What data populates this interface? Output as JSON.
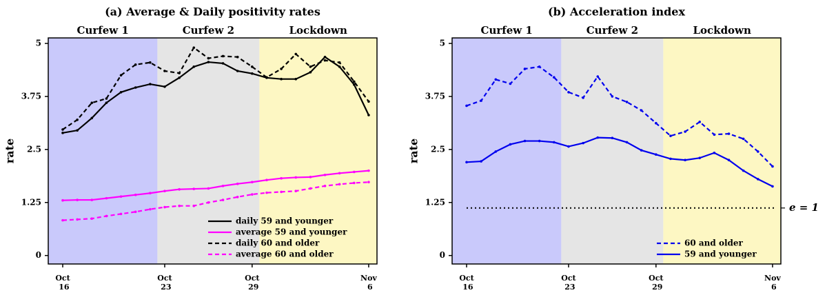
{
  "chart_data": [
    {
      "type": "line",
      "title": "(a) Average & Daily positivity rates",
      "y_label": "rate",
      "categories": [
        "Oct 16",
        null,
        null,
        null,
        null,
        null,
        null,
        "Oct 23",
        null,
        null,
        null,
        null,
        null,
        "Oct 29",
        null,
        null,
        null,
        null,
        null,
        null,
        null,
        "Nov 6"
      ],
      "ylim": [
        -0.2,
        5.13
      ],
      "yticks": [
        0,
        1.25,
        2.5,
        3.75,
        5
      ],
      "grid": false,
      "legend": "lower right",
      "regions": [
        {
          "label": "Curfew 1",
          "from": 0,
          "to": 6,
          "color": "#c9c9fb"
        },
        {
          "label": "Curfew 2",
          "from": 7,
          "to": 13,
          "color": "#e5e5e5"
        },
        {
          "label": "Lockdown",
          "from": 14,
          "to": 21,
          "color": "#fdf7c3"
        }
      ],
      "series": [
        {
          "name": "daily 59 and younger",
          "color": "#000000",
          "dash": false,
          "values": [
            2.89,
            2.95,
            3.24,
            3.6,
            3.85,
            3.96,
            4.04,
            3.98,
            4.19,
            4.45,
            4.56,
            4.53,
            4.35,
            4.29,
            4.19,
            4.16,
            4.16,
            4.32,
            4.68,
            4.45,
            4.03,
            3.31
          ]
        },
        {
          "name": "average 59 and younger",
          "color": "#ff00ff",
          "dash": false,
          "values": [
            1.3,
            1.31,
            1.31,
            1.35,
            1.39,
            1.43,
            1.47,
            1.52,
            1.56,
            1.57,
            1.58,
            1.64,
            1.69,
            1.73,
            1.78,
            1.82,
            1.84,
            1.85,
            1.9,
            1.94,
            1.97,
            2.0
          ]
        },
        {
          "name": "daily 60 and older",
          "color": "#000000",
          "dash": true,
          "values": [
            2.97,
            3.2,
            3.6,
            3.7,
            4.25,
            4.5,
            4.55,
            4.35,
            4.3,
            4.9,
            4.65,
            4.7,
            4.68,
            4.45,
            4.2,
            4.4,
            4.75,
            4.45,
            4.6,
            4.55,
            4.1,
            3.63
          ]
        },
        {
          "name": "average 60 and older",
          "color": "#ff00ff",
          "dash": true,
          "values": [
            0.83,
            0.85,
            0.87,
            0.93,
            0.98,
            1.03,
            1.09,
            1.14,
            1.17,
            1.17,
            1.25,
            1.31,
            1.38,
            1.44,
            1.48,
            1.5,
            1.52,
            1.58,
            1.64,
            1.68,
            1.71,
            1.73
          ]
        }
      ]
    },
    {
      "type": "line",
      "title": "(b) Acceleration index",
      "y_label": "rate",
      "categories": [
        "Oct 16",
        null,
        null,
        null,
        null,
        null,
        null,
        "Oct 23",
        null,
        null,
        null,
        null,
        null,
        "Oct 29",
        null,
        null,
        null,
        null,
        null,
        null,
        null,
        "Nov 6"
      ],
      "ylim": [
        -0.2,
        5.13
      ],
      "yticks": [
        0,
        1.25,
        2.5,
        3.75,
        5
      ],
      "grid": false,
      "legend": "lower right",
      "regions": [
        {
          "label": "Curfew 1",
          "from": 0,
          "to": 6,
          "color": "#c9c9fb"
        },
        {
          "label": "Curfew 2",
          "from": 7,
          "to": 13,
          "color": "#e5e5e5"
        },
        {
          "label": "Lockdown",
          "from": 14,
          "to": 21,
          "color": "#fdf7c3"
        }
      ],
      "hline": {
        "value": 1.12,
        "label": "e = 1",
        "color": "#000000"
      },
      "series": [
        {
          "name": "60 and older",
          "color": "#0000ee",
          "dash": true,
          "values": [
            3.53,
            3.65,
            4.15,
            4.05,
            4.4,
            4.45,
            4.2,
            3.85,
            3.72,
            4.22,
            3.75,
            3.62,
            3.42,
            3.12,
            2.82,
            2.92,
            3.15,
            2.85,
            2.87,
            2.75,
            2.45,
            2.1
          ]
        },
        {
          "name": "59 and younger",
          "color": "#0000ee",
          "dash": false,
          "values": [
            2.2,
            2.22,
            2.45,
            2.62,
            2.7,
            2.7,
            2.67,
            2.57,
            2.65,
            2.78,
            2.77,
            2.67,
            2.48,
            2.38,
            2.28,
            2.25,
            2.3,
            2.42,
            2.25,
            2.0,
            1.8,
            1.63
          ]
        }
      ]
    }
  ]
}
